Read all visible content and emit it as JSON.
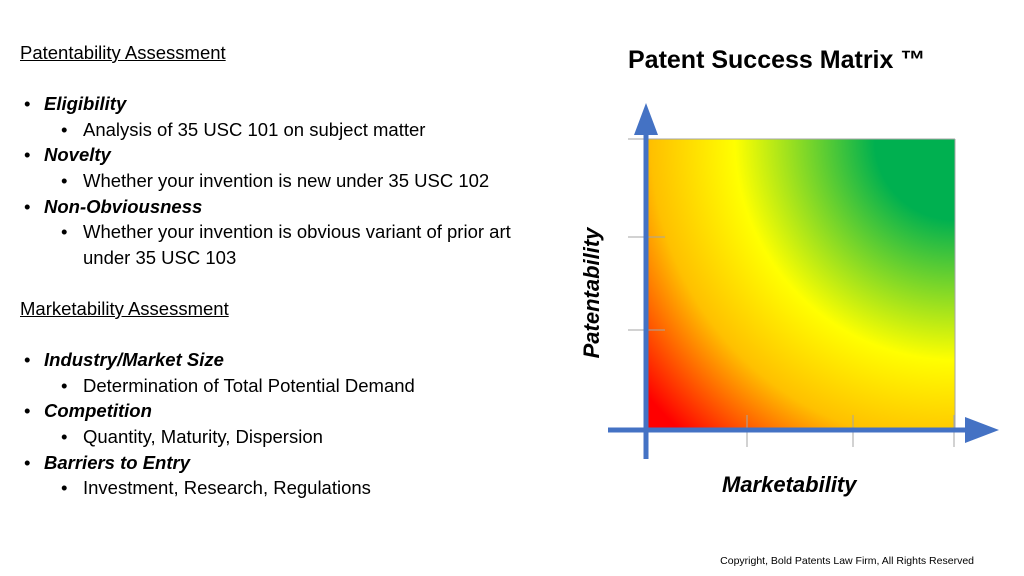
{
  "patentability": {
    "heading": "Patentability Assessment",
    "items": [
      {
        "title": "Eligibility",
        "sub": [
          "Analysis of 35 USC 101 on subject matter"
        ]
      },
      {
        "title": "Novelty",
        "sub": [
          "Whether your invention is new under 35 USC 102"
        ]
      },
      {
        "title": "Non-Obviousness",
        "sub": [
          "Whether your invention is obvious variant of prior art under 35 USC 103"
        ]
      }
    ]
  },
  "marketability": {
    "heading": "Marketability Assessment",
    "items": [
      {
        "title": "Industry/Market Size",
        "sub": [
          "Determination of Total Potential Demand"
        ]
      },
      {
        "title": "Competition",
        "sub": [
          "Quantity, Maturity, Dispersion"
        ]
      },
      {
        "title": "Barriers to Entry",
        "sub": [
          "Investment, Research, Regulations"
        ]
      }
    ]
  },
  "matrix": {
    "title": "Patent Success Matrix ™",
    "x_label": "Marketability",
    "y_label": "Patentability",
    "colors": {
      "axis": "#4472c4",
      "tick": "#a6a6a6",
      "high": "#00b050",
      "mid": "#ffff00",
      "warm": "#ffc000",
      "low": "#ff0000"
    }
  },
  "footer": {
    "copyright": "Copyright, Bold Patents Law Firm, All Rights Reserved"
  }
}
